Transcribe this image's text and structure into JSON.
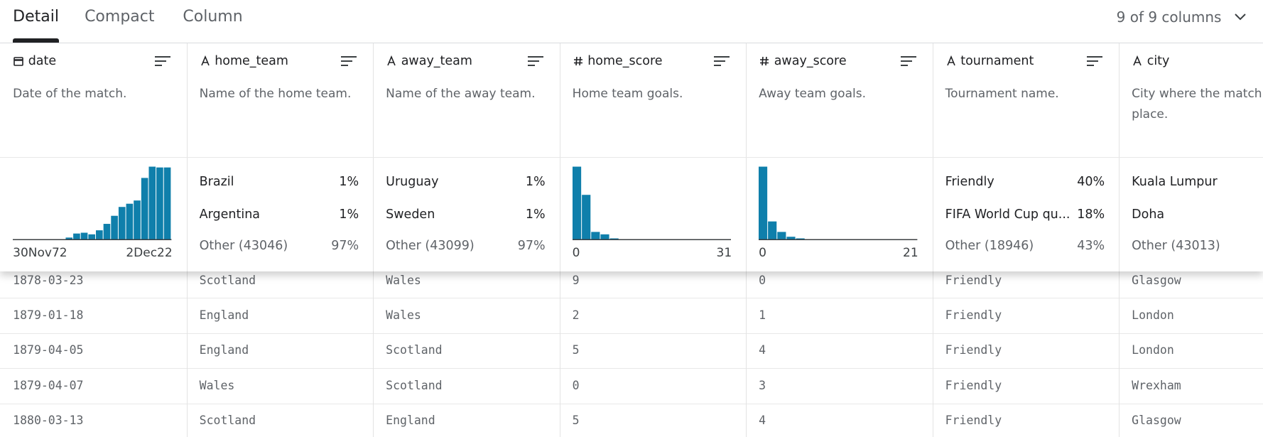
{
  "tabs": [
    "Detail",
    "Compact",
    "Column"
  ],
  "column_count": "9 of 9 columns",
  "columns": [
    {
      "name": "date",
      "kind": "date",
      "description": "Date of the match.",
      "summary": {
        "histogram": [
          0,
          0,
          0,
          0,
          0,
          0.5,
          1,
          3,
          8,
          9,
          7,
          12,
          20,
          30,
          41,
          45,
          49,
          77,
          91,
          90,
          90
        ],
        "range": [
          "30Nov72",
          "2Dec22"
        ]
      }
    },
    {
      "name": "home_team",
      "kind": "text",
      "description": "Name of the home team.",
      "summary": {
        "top": [
          {
            "label": "Brazil",
            "pct": "1%"
          },
          {
            "label": "Argentina",
            "pct": "1%"
          },
          {
            "label": "Other (43046)",
            "pct": "97%"
          }
        ]
      }
    },
    {
      "name": "away_team",
      "kind": "text",
      "description": "Name of the away team.",
      "summary": {
        "top": [
          {
            "label": "Uruguay",
            "pct": "1%"
          },
          {
            "label": "Sweden",
            "pct": "1%"
          },
          {
            "label": "Other (43099)",
            "pct": "97%"
          }
        ]
      }
    },
    {
      "name": "home_score",
      "kind": "number",
      "description": "Home team goals.",
      "summary": {
        "histogram": [
          91,
          56,
          10,
          7,
          2,
          1,
          0.5,
          0.3,
          0.2,
          0.1,
          0.1,
          0,
          0,
          0,
          0,
          0,
          0
        ],
        "range": [
          "0",
          "31"
        ]
      }
    },
    {
      "name": "away_score",
      "kind": "number",
      "description": "Away team goals.",
      "summary": {
        "histogram": [
          91,
          23,
          10,
          4,
          2,
          1,
          0.4,
          0.2,
          0.1,
          0,
          0,
          0,
          0,
          0,
          0,
          0,
          0
        ],
        "range": [
          "0",
          "21"
        ]
      }
    },
    {
      "name": "tournament",
      "kind": "text",
      "description": "Tournament name.",
      "summary": {
        "top": [
          {
            "label": "Friendly",
            "pct": "40%"
          },
          {
            "label": "FIFA World Cup qu...",
            "pct": "18%"
          },
          {
            "label": "Other (18946)",
            "pct": "43%"
          }
        ]
      }
    },
    {
      "name": "city",
      "kind": "text",
      "description": "City where the match took place.",
      "summary": {
        "top": [
          {
            "label": "Kuala Lumpur"
          },
          {
            "label": "Doha"
          },
          {
            "label": "Other (43013)"
          }
        ]
      }
    }
  ],
  "rows": [
    [
      "1878-03-23",
      "Scotland",
      "Wales",
      "9",
      "0",
      "Friendly",
      "Glasgow"
    ],
    [
      "1879-01-18",
      "England",
      "Wales",
      "2",
      "1",
      "Friendly",
      "London"
    ],
    [
      "1879-04-05",
      "England",
      "Scotland",
      "5",
      "4",
      "Friendly",
      "London"
    ],
    [
      "1879-04-07",
      "Wales",
      "Scotland",
      "0",
      "3",
      "Friendly",
      "Wrexham"
    ],
    [
      "1880-03-13",
      "Scotland",
      "England",
      "5",
      "4",
      "Friendly",
      "Glasgow"
    ]
  ]
}
